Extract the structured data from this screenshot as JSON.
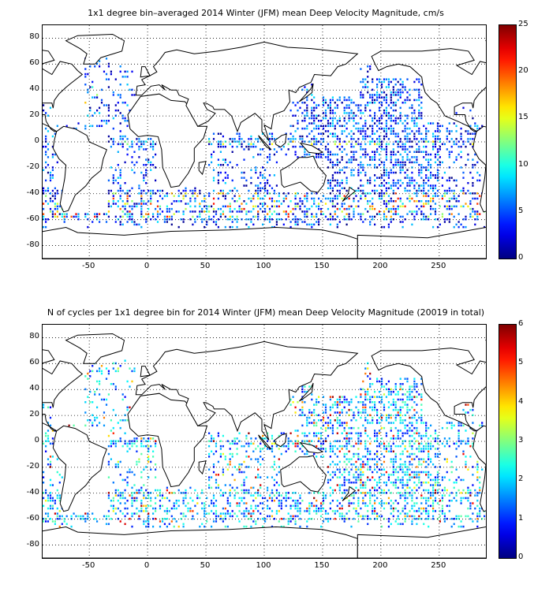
{
  "panels": [
    {
      "title": "1x1 degree bin–averaged 2014 Winter (JFM) mean Deep Velocity Magnitude, cm/s",
      "map": {
        "lon_range": [
          -90,
          290
        ],
        "lat_range": [
          -90,
          90
        ],
        "grid": "dotted",
        "data_field": "deep_velocity_magnitude"
      },
      "x_ticks": [
        "-50",
        "0",
        "50",
        "100",
        "150",
        "200",
        "250"
      ],
      "y_ticks": [
        "80",
        "60",
        "40",
        "20",
        "0",
        "-20",
        "-40",
        "-60",
        "-80"
      ],
      "colorbar": {
        "ticks": [
          "0",
          "5",
          "10",
          "15",
          "20",
          "25"
        ],
        "range": [
          0,
          25
        ],
        "colormap": "jet"
      }
    },
    {
      "title": "N of cycles per 1x1 degree bin for 2014 Winter (JFM) mean Deep Velocity Magnitude (20019 in total)",
      "map": {
        "lon_range": [
          -90,
          290
        ],
        "lat_range": [
          -90,
          90
        ],
        "grid": "dotted",
        "data_field": "cycle_count"
      },
      "x_ticks": [
        "-50",
        "0",
        "50",
        "100",
        "150",
        "200",
        "250"
      ],
      "y_ticks": [
        "80",
        "60",
        "40",
        "20",
        "0",
        "-20",
        "-40",
        "-60",
        "-80"
      ],
      "colorbar": {
        "ticks": [
          "0",
          "1",
          "2",
          "3",
          "4",
          "5",
          "6"
        ],
        "range": [
          0,
          6
        ],
        "colormap": "jet"
      }
    }
  ]
}
